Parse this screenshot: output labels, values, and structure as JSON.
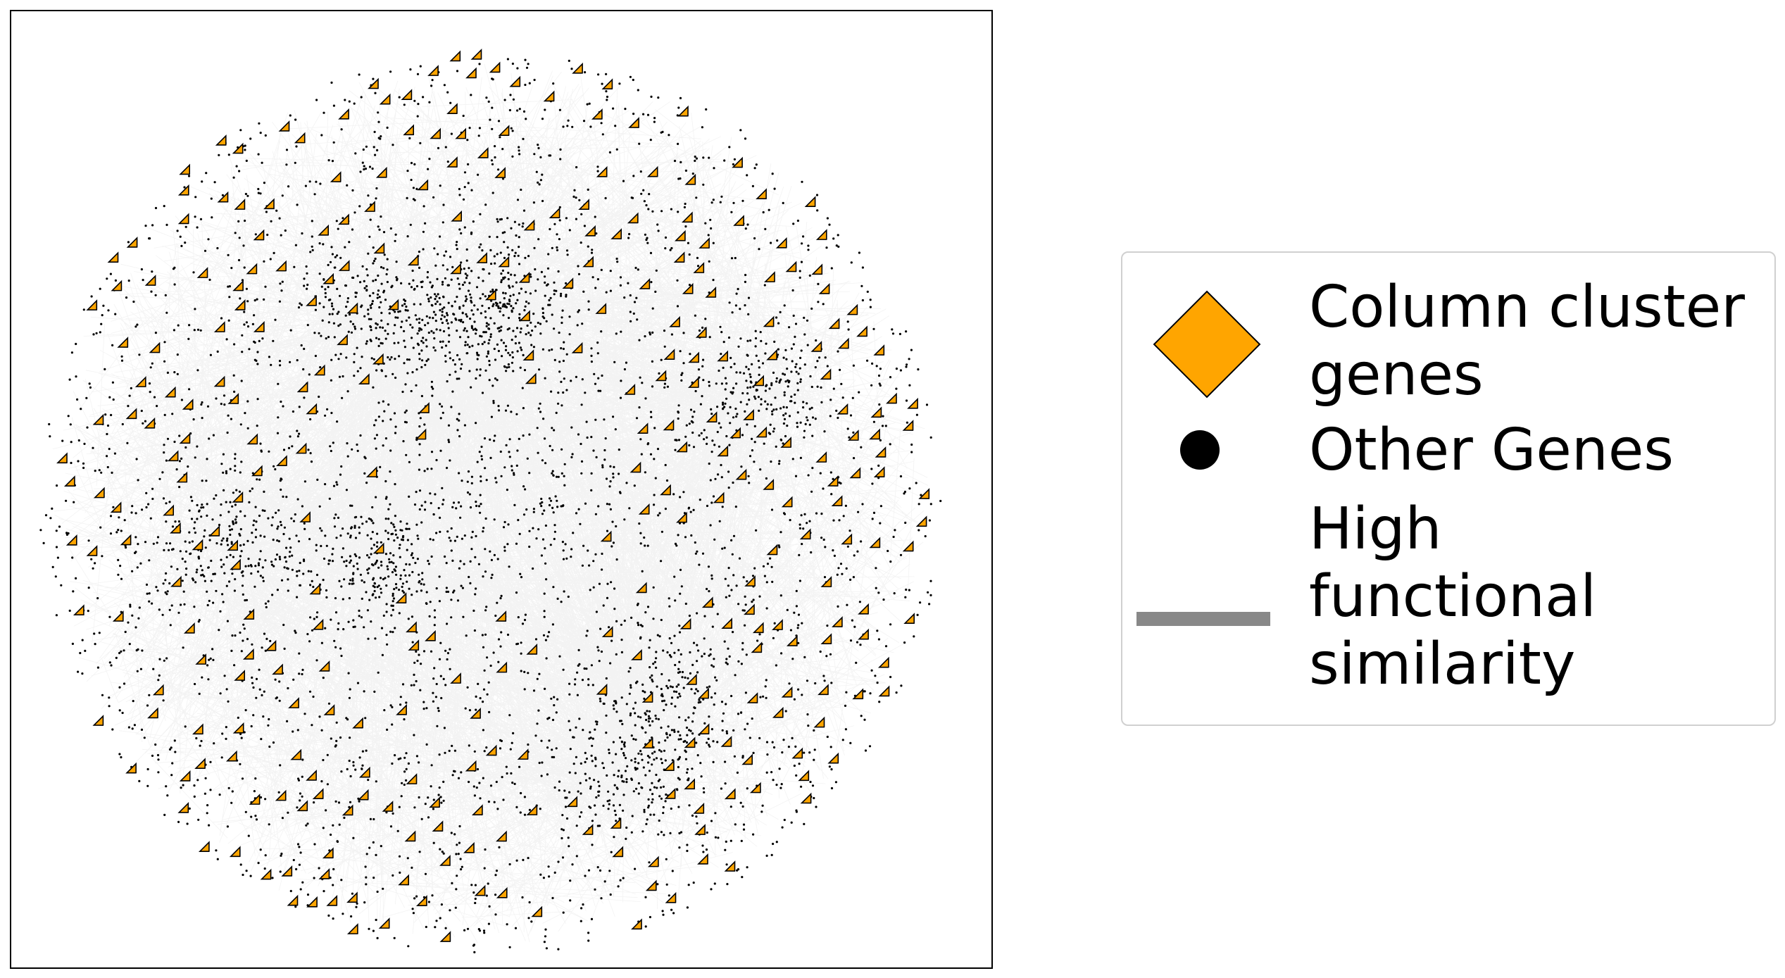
{
  "legend": {
    "items": [
      {
        "label": "Column cluster\ngenes",
        "icon": "orange-diamond-icon",
        "color": "#FFA500"
      },
      {
        "label": "Other Genes",
        "icon": "black-dot-icon",
        "color": "#000000"
      },
      {
        "label": "High\nfunctional\nsimilarity",
        "icon": "gray-line-icon",
        "color": "#888888"
      }
    ]
  },
  "colors": {
    "cluster_gene": "#FFA500",
    "other_gene": "#000000",
    "edge": "#888888",
    "frame": "#000000"
  }
}
